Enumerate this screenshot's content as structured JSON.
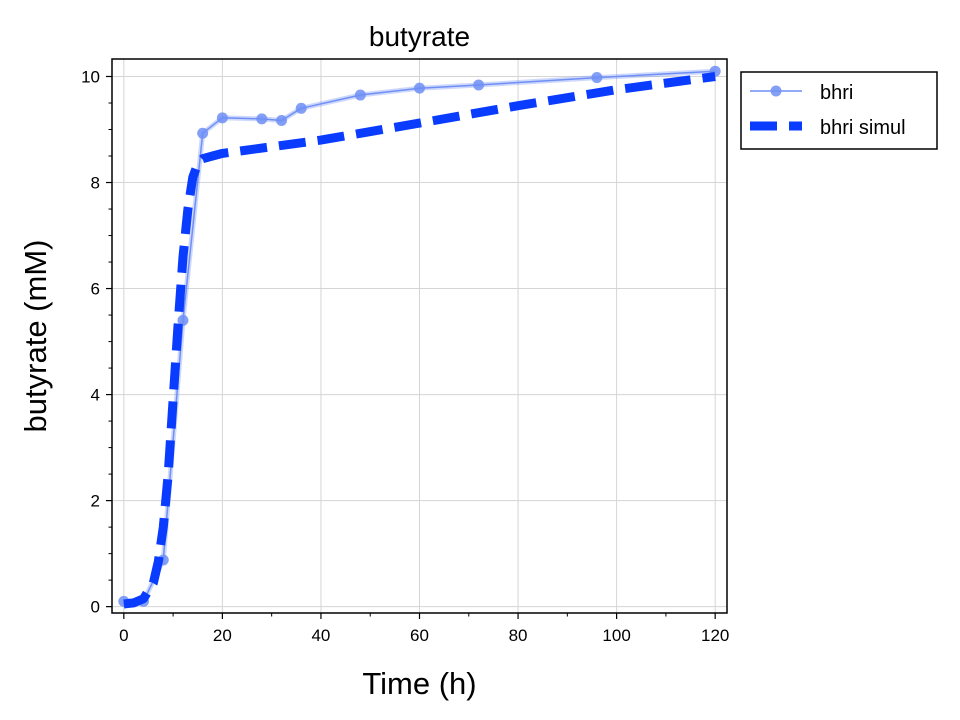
{
  "chart_data": {
    "type": "line",
    "title": "butyrate",
    "xlabel": "Time (h)",
    "ylabel": "butyrate (mM)",
    "xlim": [
      -2.4,
      122.4
    ],
    "ylim": [
      -0.12,
      10.33
    ],
    "x_ticks": [
      0,
      20,
      40,
      60,
      80,
      100,
      120
    ],
    "y_ticks": [
      0,
      2,
      4,
      6,
      8,
      10
    ],
    "grid": true,
    "legend_position": "outside-top-right",
    "series": [
      {
        "name": "bhri",
        "style": "line-markers",
        "color": "#6f8ff5",
        "x": [
          0,
          4,
          8,
          12,
          16,
          20,
          28,
          32,
          36,
          48,
          60,
          72,
          96,
          120
        ],
        "y": [
          0.1,
          0.1,
          0.88,
          5.4,
          8.93,
          9.22,
          9.2,
          9.17,
          9.4,
          9.65,
          9.78,
          9.84,
          9.98,
          10.1
        ]
      },
      {
        "name": "bhri simul",
        "style": "dashed",
        "color": "#0a3cff",
        "x": [
          0,
          2,
          4,
          6,
          7,
          8,
          9,
          10,
          11,
          12,
          13,
          14,
          15,
          16,
          18,
          20,
          40,
          60,
          80,
          100,
          120
        ],
        "y": [
          0.05,
          0.07,
          0.15,
          0.45,
          0.85,
          1.5,
          2.5,
          3.9,
          5.3,
          6.6,
          7.5,
          8.1,
          8.35,
          8.45,
          8.5,
          8.55,
          8.8,
          9.12,
          9.45,
          9.75,
          10.0
        ]
      }
    ]
  }
}
